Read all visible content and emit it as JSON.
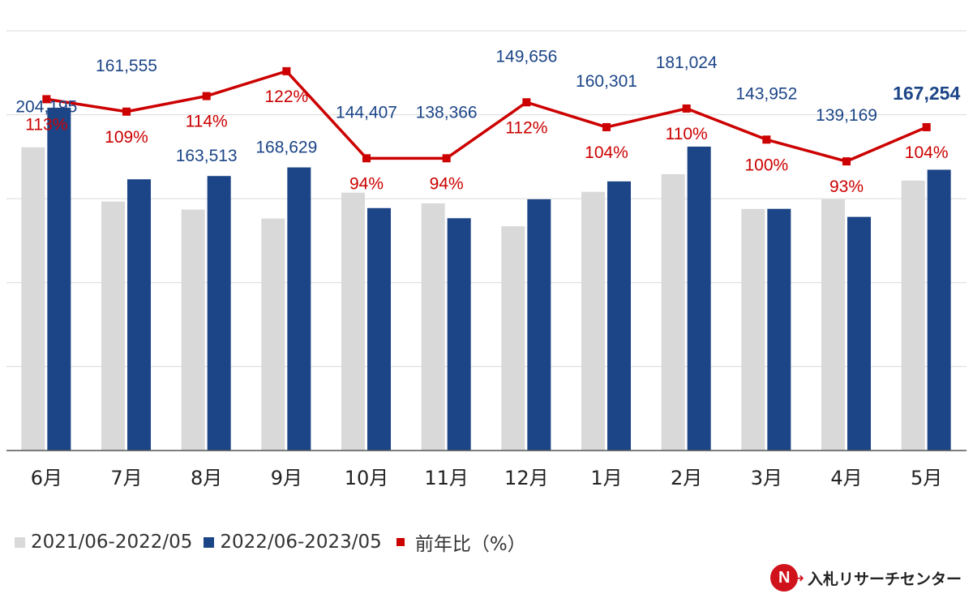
{
  "chart_data": {
    "type": "bar",
    "categories": [
      "6月",
      "7月",
      "8月",
      "9月",
      "10月",
      "11月",
      "12月",
      "1月",
      "2月",
      "3月",
      "4月",
      "5月"
    ],
    "series": [
      {
        "name": "2021/06-2022/05",
        "values": [
          180600,
          148300,
          143500,
          138200,
          153600,
          147200,
          133600,
          154100,
          164600,
          143900,
          149600,
          160800
        ],
        "color": "#d9d9d9"
      },
      {
        "name": "2022/06-2023/05",
        "values": [
          204195,
          161555,
          163513,
          168629,
          144407,
          138366,
          149656,
          160301,
          181024,
          143952,
          139169,
          167254
        ],
        "color": "#1c4587",
        "labels": [
          "204,195",
          "161,555",
          "163,513",
          "168,629",
          "144,407",
          "138,366",
          "149,656",
          "160,301",
          "181,024",
          "143,952",
          "139,169",
          "167,254"
        ]
      },
      {
        "name": "前年比（%）",
        "type": "line",
        "values": [
          113,
          109,
          114,
          122,
          94,
          94,
          112,
          104,
          110,
          100,
          93,
          104
        ],
        "color": "#cc0000",
        "labels": [
          "113%",
          "109%",
          "114%",
          "122%",
          "94%",
          "94%",
          "112%",
          "104%",
          "110%",
          "100%",
          "93%",
          "104%"
        ]
      }
    ],
    "ylim": [
      0,
      250000
    ],
    "y2lim": [
      0,
      135
    ],
    "grid": true,
    "legend_position": "bottom-left"
  },
  "logo": {
    "mark": "N",
    "text": "入札リサーチセンター"
  }
}
